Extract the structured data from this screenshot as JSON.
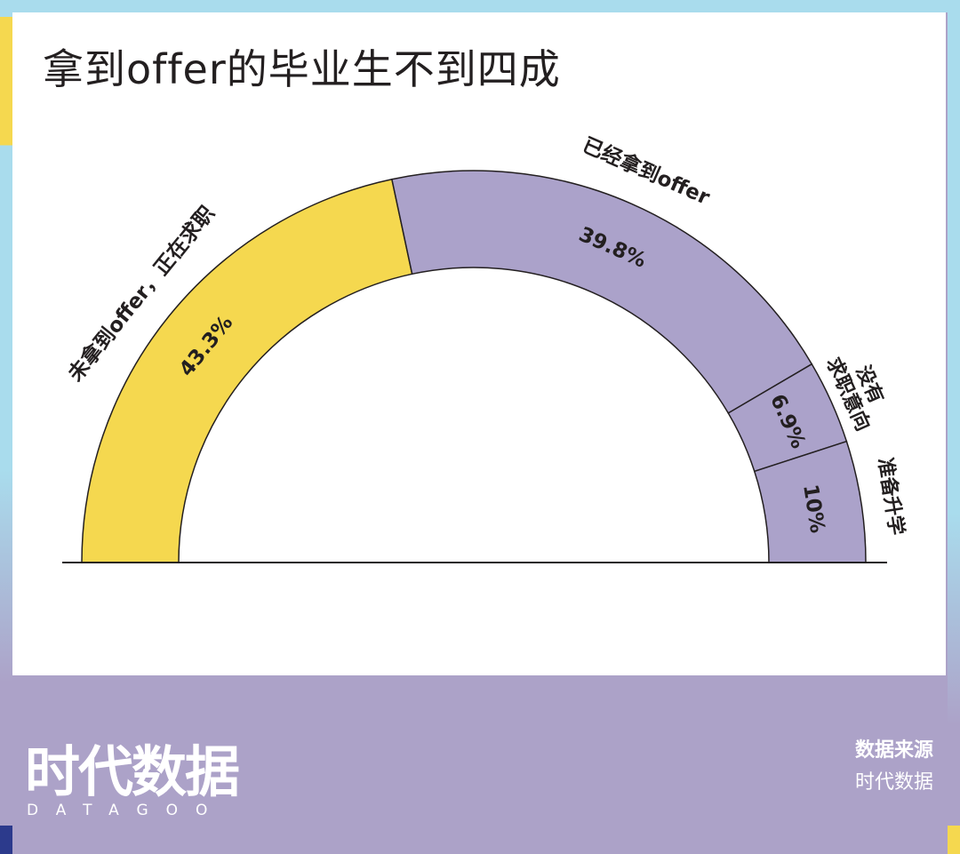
{
  "title": "拿到offer的毕业生不到四成",
  "chart_data": {
    "type": "pie",
    "variant": "semicircle-donut",
    "slices": [
      {
        "label": "未拿到offer，正在求职",
        "value": 43.3,
        "value_label": "43.3%",
        "color": "#f5d84f"
      },
      {
        "label": "已经拿到offer",
        "value": 39.8,
        "value_label": "39.8%",
        "color": "#aba2ca"
      },
      {
        "label": "没有求职意向",
        "value": 6.9,
        "value_label": "6.9%",
        "color": "#aba2ca"
      },
      {
        "label": "准备升学",
        "value": 10,
        "value_label": "10%",
        "color": "#aba2ca"
      }
    ]
  },
  "brand": {
    "name": "时代数据",
    "subtitle": "DATAGOO"
  },
  "source": {
    "label": "数据来源",
    "value": "时代数据"
  }
}
